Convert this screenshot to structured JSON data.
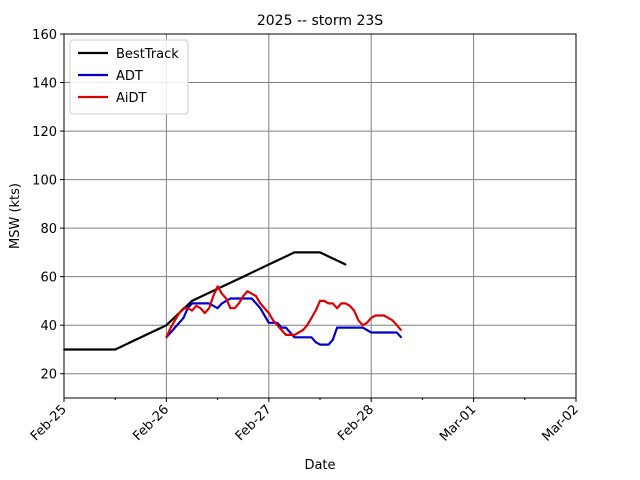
{
  "chart_data": {
    "type": "line",
    "title": "2025 -- storm 23S",
    "xlabel": "Date",
    "ylabel": "MSW (kts)",
    "xlim": [
      "2025-02-25",
      "2025-03-02"
    ],
    "ylim": [
      10,
      160
    ],
    "grid": true,
    "legend_position": "top-left",
    "x_ticks": [
      {
        "date": "2025-02-25",
        "label": "Feb-25"
      },
      {
        "date": "2025-02-26",
        "label": "Feb-26"
      },
      {
        "date": "2025-02-27",
        "label": "Feb-27"
      },
      {
        "date": "2025-02-28",
        "label": "Feb-28"
      },
      {
        "date": "2025-03-01",
        "label": "Mar-01"
      },
      {
        "date": "2025-03-02",
        "label": "Mar-02"
      }
    ],
    "y_ticks": [
      20,
      40,
      60,
      80,
      100,
      120,
      140,
      160
    ],
    "series": [
      {
        "name": "BestTrack",
        "color": "#000000",
        "x": [
          "2025-02-25 00:00",
          "2025-02-25 12:00",
          "2025-02-26 00:00",
          "2025-02-26 06:00",
          "2025-02-26 12:00",
          "2025-02-26 18:00",
          "2025-02-27 00:00",
          "2025-02-27 06:00",
          "2025-02-27 12:00",
          "2025-02-27 18:00"
        ],
        "y": [
          30,
          30,
          40,
          50,
          55,
          60,
          65,
          70,
          70,
          65
        ]
      },
      {
        "name": "ADT",
        "color": "#0000cc",
        "x": [
          "2025-02-26 00:00",
          "2025-02-26 01:00",
          "2025-02-26 02:00",
          "2025-02-26 03:00",
          "2025-02-26 04:00",
          "2025-02-26 05:00",
          "2025-02-26 06:00",
          "2025-02-26 08:00",
          "2025-02-26 10:00",
          "2025-02-26 12:00",
          "2025-02-26 13:00",
          "2025-02-26 14:00",
          "2025-02-26 15:00",
          "2025-02-26 16:00",
          "2025-02-26 18:00",
          "2025-02-26 20:00",
          "2025-02-26 22:00",
          "2025-02-27 00:00",
          "2025-02-27 01:00",
          "2025-02-27 02:00",
          "2025-02-27 03:00",
          "2025-02-27 04:00",
          "2025-02-27 06:00",
          "2025-02-27 08:00",
          "2025-02-27 10:00",
          "2025-02-27 11:00",
          "2025-02-27 12:00",
          "2025-02-27 14:00",
          "2025-02-27 15:00",
          "2025-02-27 16:00",
          "2025-02-27 18:00",
          "2025-02-27 20:00",
          "2025-02-27 22:00",
          "2025-02-28 00:00",
          "2025-02-28 02:00",
          "2025-02-28 04:00",
          "2025-02-28 06:00",
          "2025-02-28 07:00"
        ],
        "y": [
          35,
          37,
          39,
          41,
          43,
          47,
          49,
          49,
          49,
          47,
          49,
          50,
          51,
          51,
          51,
          51,
          47,
          41,
          41,
          41,
          39,
          39,
          35,
          35,
          35,
          33,
          32,
          32,
          34,
          39,
          39,
          39,
          39,
          37,
          37,
          37,
          37,
          35
        ]
      },
      {
        "name": "AiDT",
        "color": "#dd0000",
        "x": [
          "2025-02-26 00:00",
          "2025-02-26 01:00",
          "2025-02-26 02:00",
          "2025-02-26 03:00",
          "2025-02-26 04:00",
          "2025-02-26 05:00",
          "2025-02-26 06:00",
          "2025-02-26 07:00",
          "2025-02-26 08:00",
          "2025-02-26 09:00",
          "2025-02-26 10:00",
          "2025-02-26 11:00",
          "2025-02-26 12:00",
          "2025-02-26 13:00",
          "2025-02-26 14:00",
          "2025-02-26 15:00",
          "2025-02-26 16:00",
          "2025-02-26 17:00",
          "2025-02-26 18:00",
          "2025-02-26 19:00",
          "2025-02-26 20:00",
          "2025-02-26 21:00",
          "2025-02-26 22:00",
          "2025-02-26 23:00",
          "2025-02-27 00:00",
          "2025-02-27 01:00",
          "2025-02-27 02:00",
          "2025-02-27 03:00",
          "2025-02-27 04:00",
          "2025-02-27 05:00",
          "2025-02-27 06:00",
          "2025-02-27 07:00",
          "2025-02-27 08:00",
          "2025-02-27 09:00",
          "2025-02-27 10:00",
          "2025-02-27 11:00",
          "2025-02-27 12:00",
          "2025-02-27 13:00",
          "2025-02-27 14:00",
          "2025-02-27 15:00",
          "2025-02-27 16:00",
          "2025-02-27 17:00",
          "2025-02-27 18:00",
          "2025-02-27 19:00",
          "2025-02-27 20:00",
          "2025-02-27 21:00",
          "2025-02-27 22:00",
          "2025-02-27 23:00",
          "2025-02-28 00:00",
          "2025-02-28 01:00",
          "2025-02-28 02:00",
          "2025-02-28 03:00",
          "2025-02-28 04:00",
          "2025-02-28 05:00",
          "2025-02-28 06:00",
          "2025-02-28 07:00"
        ],
        "y": [
          35,
          39,
          42,
          45,
          47,
          47,
          46,
          48,
          47,
          45,
          47,
          52,
          56,
          53,
          51,
          47,
          47,
          49,
          52,
          54,
          53,
          52,
          49,
          47,
          45,
          42,
          40,
          38,
          36,
          36,
          36,
          37,
          38,
          40,
          43,
          46,
          50,
          50,
          49,
          49,
          47,
          49,
          49,
          48,
          46,
          42,
          40,
          41,
          43,
          44,
          44,
          44,
          43,
          42,
          40,
          38
        ]
      }
    ]
  }
}
